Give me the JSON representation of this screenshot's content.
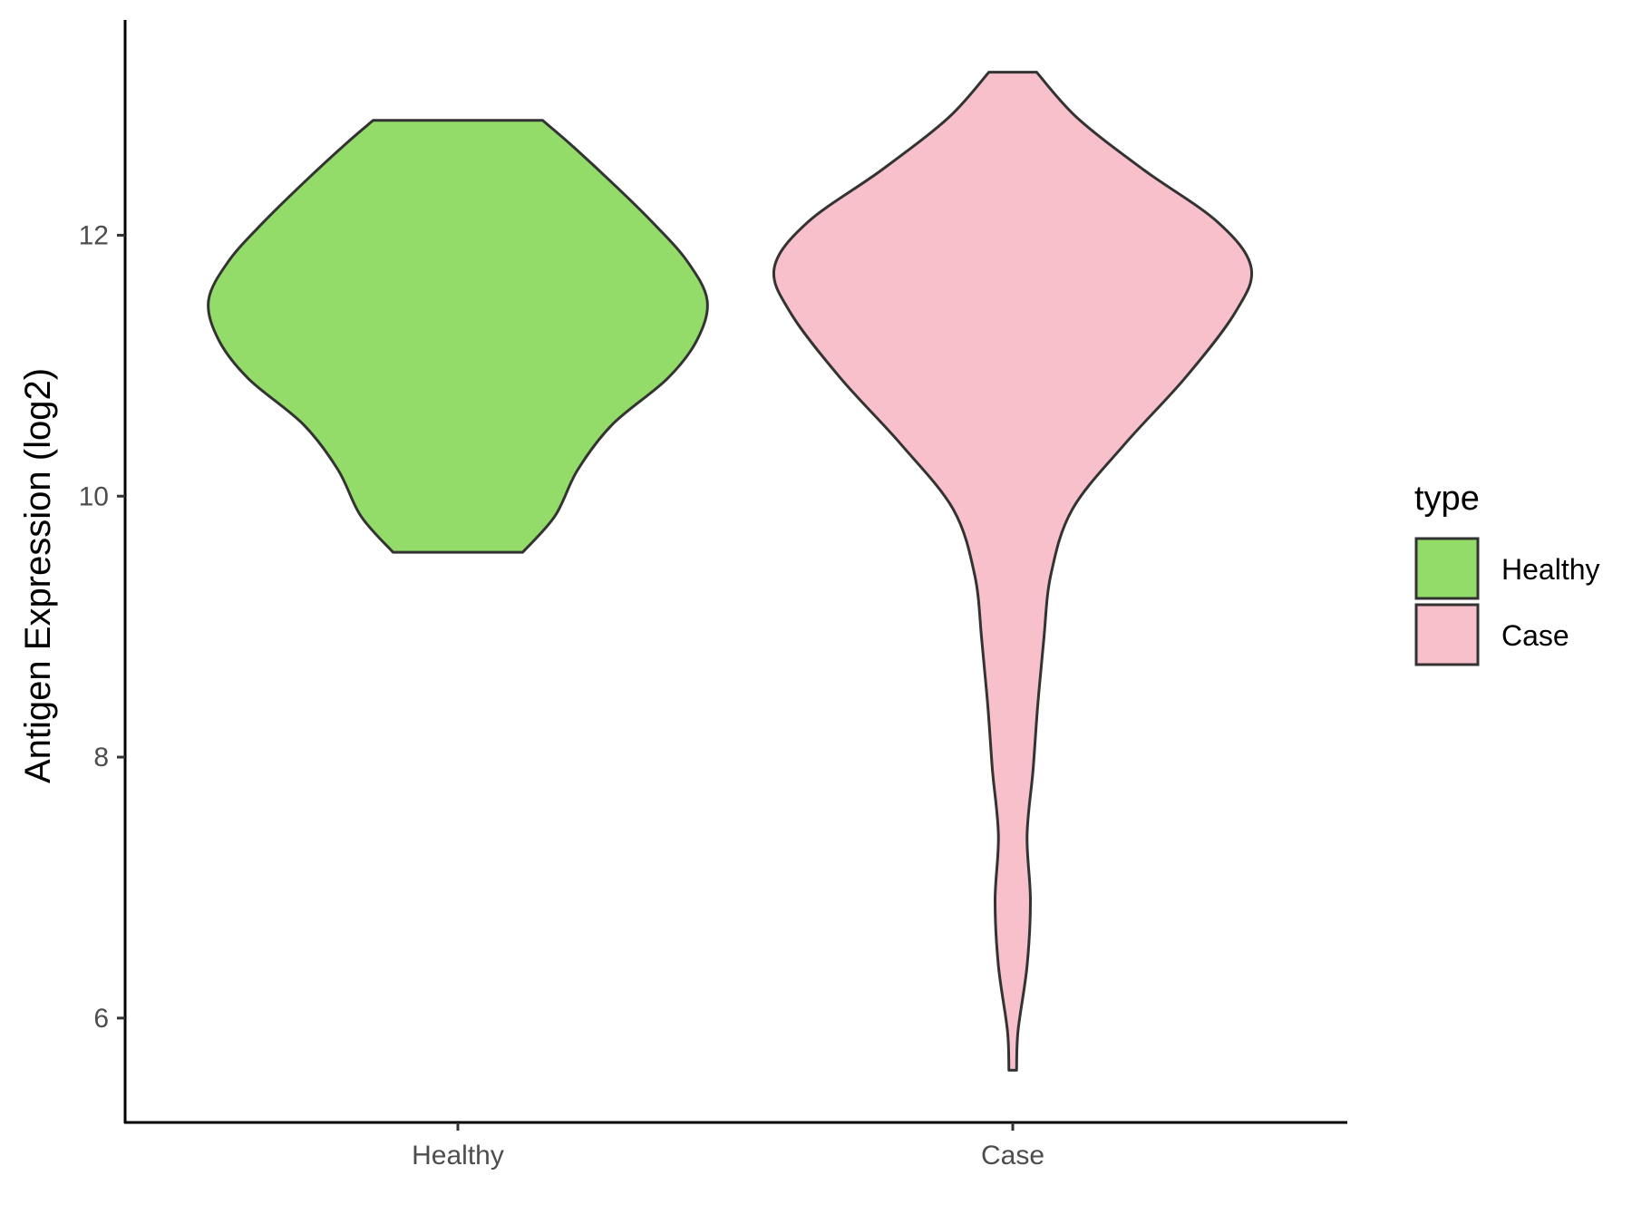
{
  "chart_data": {
    "type": "violin",
    "title": "",
    "xlabel": "",
    "ylabel": "Antigen Expression (log2)",
    "ylim": [
      5.2,
      13.65
    ],
    "yticks": [
      6,
      8,
      10,
      12
    ],
    "categories": [
      "Healthy",
      "Case"
    ],
    "legend": {
      "title": "type",
      "placement": "right",
      "entries": [
        {
          "label": "Healthy",
          "color": "#93DC6A"
        },
        {
          "label": "Case",
          "color": "#F8C0CB"
        }
      ]
    },
    "outline_color": "#333333",
    "series": [
      {
        "category": "Healthy",
        "color": "#93DC6A",
        "min": 9.57,
        "max": 12.88,
        "profile": [
          {
            "y": 9.57,
            "w": 0.26
          },
          {
            "y": 9.85,
            "w": 0.39
          },
          {
            "y": 10.2,
            "w": 0.48
          },
          {
            "y": 10.55,
            "w": 0.62
          },
          {
            "y": 10.9,
            "w": 0.84
          },
          {
            "y": 11.2,
            "w": 0.96
          },
          {
            "y": 11.5,
            "w": 1.0
          },
          {
            "y": 11.8,
            "w": 0.92
          },
          {
            "y": 12.1,
            "w": 0.78
          },
          {
            "y": 12.4,
            "w": 0.62
          },
          {
            "y": 12.7,
            "w": 0.45
          },
          {
            "y": 12.88,
            "w": 0.34
          }
        ]
      },
      {
        "category": "Case",
        "color": "#F8C0CB",
        "min": 5.6,
        "max": 13.25,
        "profile": [
          {
            "y": 5.6,
            "w": 0.016
          },
          {
            "y": 5.9,
            "w": 0.022
          },
          {
            "y": 6.4,
            "w": 0.06
          },
          {
            "y": 6.9,
            "w": 0.074
          },
          {
            "y": 7.4,
            "w": 0.06
          },
          {
            "y": 7.9,
            "w": 0.085
          },
          {
            "y": 8.4,
            "w": 0.105
          },
          {
            "y": 8.9,
            "w": 0.13
          },
          {
            "y": 9.4,
            "w": 0.16
          },
          {
            "y": 9.9,
            "w": 0.25
          },
          {
            "y": 10.4,
            "w": 0.47
          },
          {
            "y": 10.9,
            "w": 0.72
          },
          {
            "y": 11.4,
            "w": 0.93
          },
          {
            "y": 11.75,
            "w": 1.0
          },
          {
            "y": 12.1,
            "w": 0.86
          },
          {
            "y": 12.5,
            "w": 0.55
          },
          {
            "y": 12.9,
            "w": 0.27
          },
          {
            "y": 13.25,
            "w": 0.1
          }
        ]
      }
    ]
  }
}
